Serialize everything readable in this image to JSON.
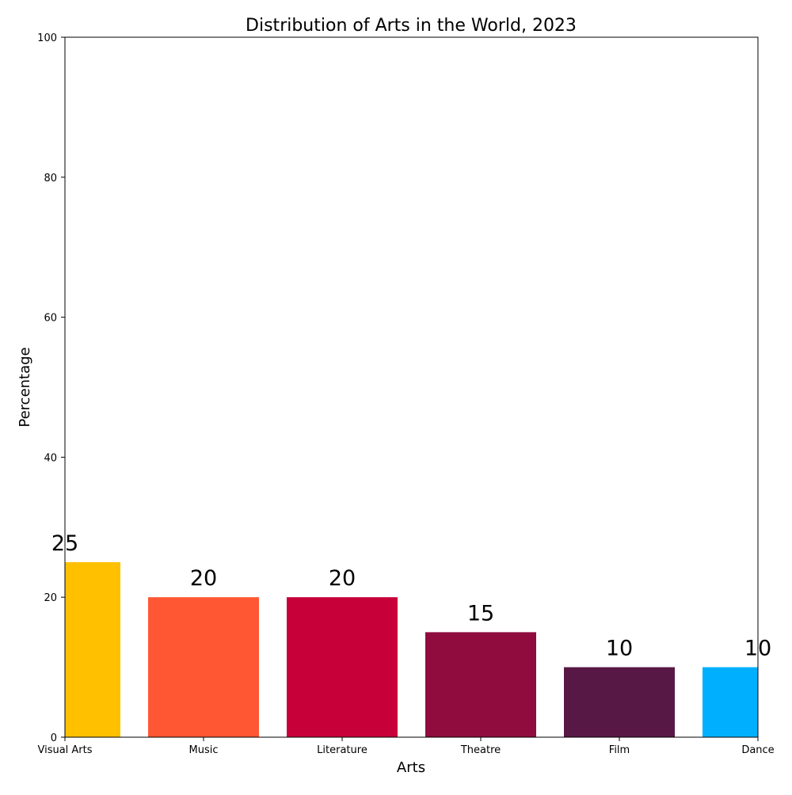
{
  "chart_data": {
    "type": "bar",
    "title": "Distribution of Arts in the World, 2023",
    "xlabel": "Arts",
    "ylabel": "Percentage",
    "categories": [
      "Visual Arts",
      "Music",
      "Literature",
      "Theatre",
      "Film",
      "Dance"
    ],
    "values": [
      25,
      20,
      20,
      15,
      10,
      10
    ],
    "data_labels": [
      "25",
      "20",
      "20",
      "15",
      "10",
      "10"
    ],
    "colors": [
      "#FFC000",
      "#FF5733",
      "#C70039",
      "#900C3F",
      "#581845",
      "#00B0FF"
    ],
    "ylim": [
      0,
      100
    ],
    "yticks": [
      0,
      20,
      40,
      60,
      80,
      100
    ],
    "grid": false,
    "legend": "none"
  }
}
